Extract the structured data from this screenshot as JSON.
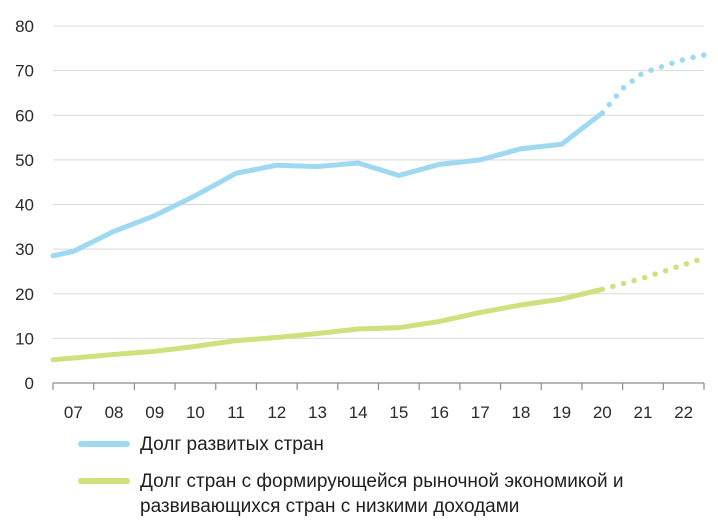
{
  "chart_data": {
    "type": "line",
    "x": [
      "07",
      "08",
      "09",
      "10",
      "11",
      "12",
      "13",
      "14",
      "15",
      "16",
      "17",
      "18",
      "19",
      "20",
      "21",
      "22"
    ],
    "ylim": [
      0,
      80
    ],
    "yticks": [
      0,
      10,
      20,
      30,
      40,
      50,
      60,
      70,
      80
    ],
    "grid": true,
    "legend_position": "bottom",
    "series": [
      {
        "name": "Долг развитых стран",
        "color": "#9fd8f1",
        "solid_points": [
          {
            "x": 2006.5,
            "y": 28.5
          },
          {
            "x": 2007,
            "y": 29.5
          },
          {
            "x": 2008,
            "y": 34
          },
          {
            "x": 2009,
            "y": 37.5
          },
          {
            "x": 2010,
            "y": 42
          },
          {
            "x": 2011,
            "y": 47
          },
          {
            "x": 2012,
            "y": 48.8
          },
          {
            "x": 2013,
            "y": 48.5
          },
          {
            "x": 2014,
            "y": 49.3
          },
          {
            "x": 2015,
            "y": 46.5
          },
          {
            "x": 2016,
            "y": 49
          },
          {
            "x": 2017,
            "y": 50
          },
          {
            "x": 2018,
            "y": 52.5
          },
          {
            "x": 2019,
            "y": 53.5
          },
          {
            "x": 2020,
            "y": 60.5
          }
        ],
        "forecast_points": [
          {
            "x": 2020,
            "y": 60.5
          },
          {
            "x": 2020.5,
            "y": 66
          },
          {
            "x": 2021,
            "y": 69.5
          },
          {
            "x": 2022,
            "y": 72.5
          },
          {
            "x": 2022.5,
            "y": 73.5
          }
        ]
      },
      {
        "name": "Долг стран с формирующейся рыночной экономикой и\nразвивающихся стран с низкими доходами",
        "color": "#cde17d",
        "solid_points": [
          {
            "x": 2006.5,
            "y": 5.2
          },
          {
            "x": 2007,
            "y": 5.6
          },
          {
            "x": 2008,
            "y": 6.4
          },
          {
            "x": 2009,
            "y": 7.1
          },
          {
            "x": 2010,
            "y": 8.2
          },
          {
            "x": 2011,
            "y": 9.5
          },
          {
            "x": 2012,
            "y": 10.2
          },
          {
            "x": 2013,
            "y": 11.1
          },
          {
            "x": 2014,
            "y": 12.1
          },
          {
            "x": 2015,
            "y": 12.4
          },
          {
            "x": 2016,
            "y": 13.8
          },
          {
            "x": 2017,
            "y": 15.8
          },
          {
            "x": 2018,
            "y": 17.5
          },
          {
            "x": 2019,
            "y": 18.8
          },
          {
            "x": 2020,
            "y": 21
          }
        ],
        "forecast_points": [
          {
            "x": 2020,
            "y": 21
          },
          {
            "x": 2021,
            "y": 23.5
          },
          {
            "x": 2022,
            "y": 26.5
          },
          {
            "x": 2022.5,
            "y": 28
          }
        ]
      }
    ]
  }
}
